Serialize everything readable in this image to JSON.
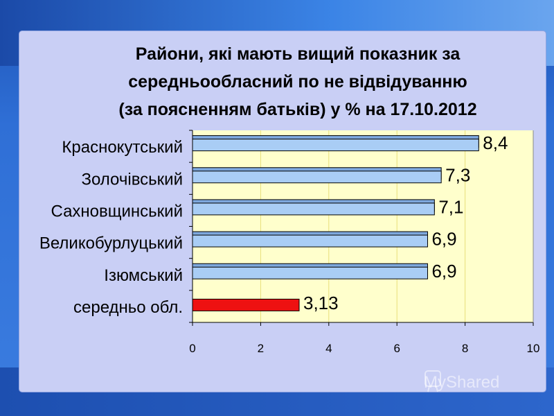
{
  "title_lines": [
    "Райони, які мають вищий показник за",
    "середньообласний по не відвідуванню",
    "(за поясненням батьків) у % на 17.10.2012"
  ],
  "watermark": "MyShared",
  "colors": {
    "bar_main": "#a9cdf5",
    "bar_main_top": "#7ea8dd",
    "bar_highlight": "#ee1111",
    "plot_bg": "#ffffcc",
    "grid_line": "#e8df7a",
    "panel_bg": "#c9cff5"
  },
  "chart_data": {
    "type": "bar",
    "orientation": "horizontal",
    "categories": [
      "Краснокутський",
      "Золочівський",
      "Сахновщинський",
      "Великобурлуцький",
      "Ізюмський",
      "середньо обл."
    ],
    "values": [
      8.4,
      7.3,
      7.1,
      6.9,
      6.9,
      3.13
    ],
    "value_labels": [
      "8,4",
      "7,3",
      "7,1",
      "6,9",
      "6,9",
      "3,13"
    ],
    "highlight_index": 5,
    "xlim": [
      0,
      10
    ],
    "xticks": [
      0,
      2,
      4,
      6,
      8,
      10
    ],
    "grid": true,
    "xlabel": "",
    "ylabel": ""
  }
}
